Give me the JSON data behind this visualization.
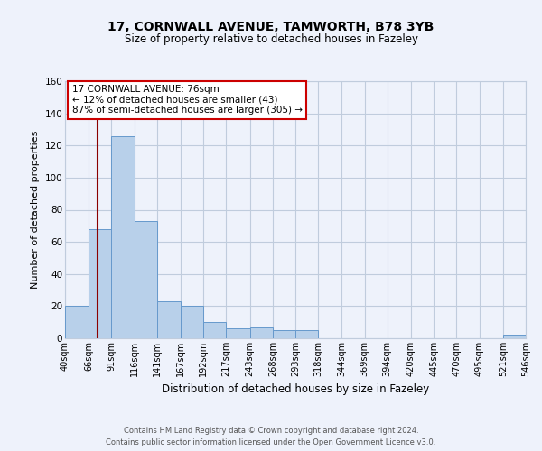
{
  "title_line1": "17, CORNWALL AVENUE, TAMWORTH, B78 3YB",
  "title_line2": "Size of property relative to detached houses in Fazeley",
  "xlabel": "Distribution of detached houses by size in Fazeley",
  "ylabel": "Number of detached properties",
  "bar_edges": [
    40,
    66,
    91,
    116,
    141,
    167,
    192,
    217,
    243,
    268,
    293,
    318,
    344,
    369,
    394,
    420,
    445,
    470,
    495,
    521,
    546
  ],
  "bar_heights": [
    20,
    68,
    126,
    73,
    23,
    20,
    10,
    6,
    7,
    5,
    5,
    0,
    0,
    0,
    0,
    0,
    0,
    0,
    0,
    2,
    0
  ],
  "bar_color": "#b8d0ea",
  "bar_edge_color": "#6699cc",
  "ylim": [
    0,
    160
  ],
  "yticks": [
    0,
    20,
    40,
    60,
    80,
    100,
    120,
    140,
    160
  ],
  "property_size": 76,
  "property_line_color": "#8b0000",
  "annotation_text_line1": "17 CORNWALL AVENUE: 76sqm",
  "annotation_text_line2": "← 12% of detached houses are smaller (43)",
  "annotation_text_line3": "87% of semi-detached houses are larger (305) →",
  "annotation_box_color": "#ffffff",
  "annotation_box_edge_color": "#cc0000",
  "bg_color": "#eef2fb",
  "grid_color": "#c0ccdd",
  "footer_line1": "Contains HM Land Registry data © Crown copyright and database right 2024.",
  "footer_line2": "Contains public sector information licensed under the Open Government Licence v3.0."
}
